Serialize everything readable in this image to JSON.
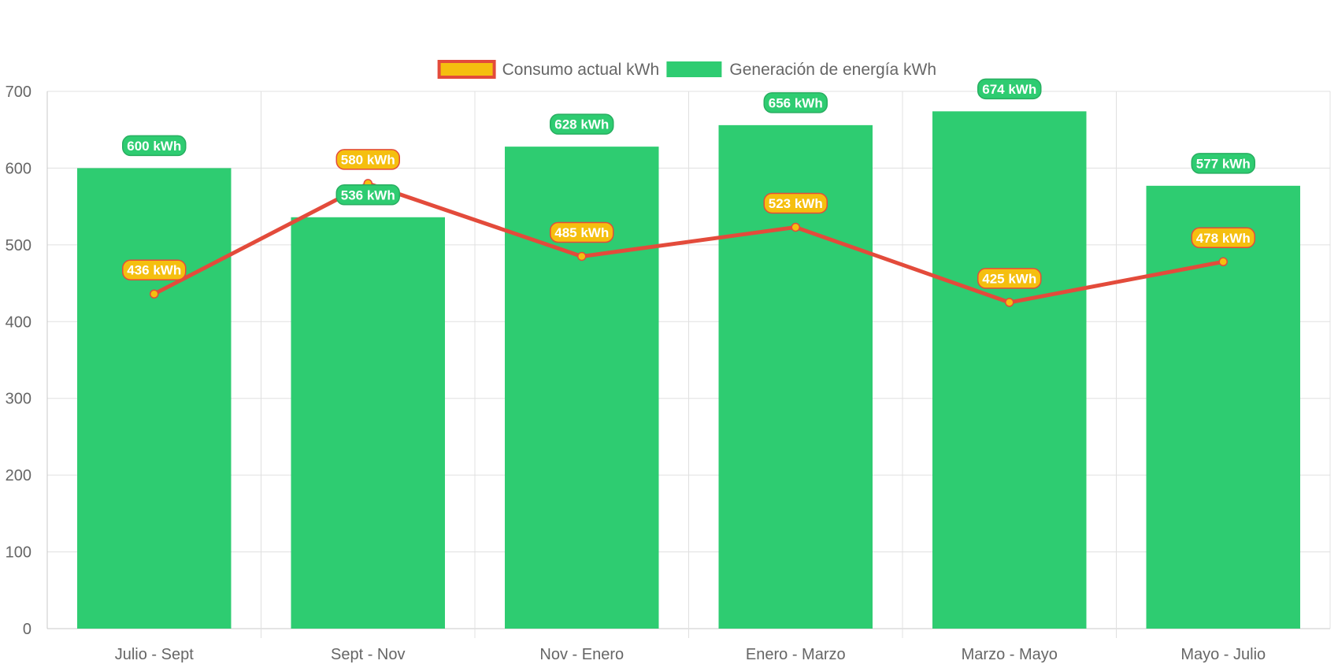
{
  "chart_data": {
    "type": "bar",
    "categories": [
      "Julio - Sept",
      "Sept - Nov",
      "Nov - Enero",
      "Enero - Marzo",
      "Marzo - Mayo",
      "Mayo - Julio"
    ],
    "series": [
      {
        "name": "Consumo actual kWh",
        "render": "line",
        "values": [
          436,
          580,
          485,
          523,
          425,
          478
        ],
        "labels": [
          "436 kWh",
          "580 kWh",
          "485 kWh",
          "523 kWh",
          "425 kWh",
          "478 kWh"
        ],
        "line_color": "#e34b3b",
        "fill_color": "#f5bf0f"
      },
      {
        "name": "Generación de energía kWh",
        "render": "bar",
        "values": [
          600,
          536,
          628,
          656,
          674,
          577
        ],
        "labels": [
          "600 kWh",
          "536 kWh",
          "628 kWh",
          "656 kWh",
          "674 kWh",
          "577 kWh"
        ],
        "color": "#2ecc71",
        "border_color": "#27ae60"
      }
    ],
    "ylim": [
      0,
      700
    ],
    "yticks": [
      0,
      100,
      200,
      300,
      400,
      500,
      600,
      700
    ],
    "grid": true,
    "legend_position": "top-center",
    "colors": {
      "grid": "#e0e0e0",
      "axis": "#c8c8c8",
      "text": "#666666"
    }
  }
}
